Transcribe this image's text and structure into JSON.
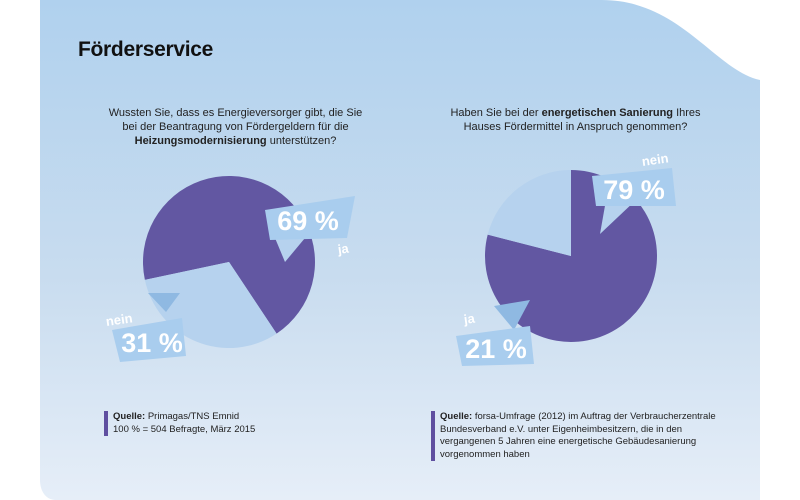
{
  "title": "Förderservice",
  "colors": {
    "ja_slice": "#6257a2",
    "nein_slice": "#b6d2ee",
    "label_box": "#a9cdee",
    "label_text": "#ffffff",
    "source_bar": "#5f4fa0"
  },
  "charts": [
    {
      "question_pre": "Wussten Sie, dass es Energieversorger gibt, die Sie bei der Beantragung von Fördergeldern für die ",
      "question_bold": "Heizungsmodernisierung",
      "question_post": " unterstützen?",
      "source_label": "Quelle:",
      "source_text": "Primagas/TNS Emnid",
      "source_note": "100 % = 504 Befragte, März 2015"
    },
    {
      "question_pre": "Haben Sie bei der ",
      "question_bold": "energetischen Sanierung",
      "question_post": " Ihres Hauses Fördermittel in Anspruch genommen?",
      "source_label": "Quelle:",
      "source_text": "forsa-Umfrage (2012) im Auftrag der Verbraucherzentrale Bundesverband e.V. unter Eigenheimbesitzern, die in den vergangenen 5 Jahren eine energetische Gebäudesanierung vorgenommen haben",
      "source_note": ""
    }
  ],
  "chart_data": [
    {
      "type": "pie",
      "slices": [
        {
          "label": "ja",
          "value": 69,
          "display": "69 %"
        },
        {
          "label": "nein",
          "value": 31,
          "display": "31 %"
        }
      ]
    },
    {
      "type": "pie",
      "slices": [
        {
          "label": "nein",
          "value": 79,
          "display": "79 %"
        },
        {
          "label": "ja",
          "value": 21,
          "display": "21 %"
        }
      ]
    }
  ]
}
